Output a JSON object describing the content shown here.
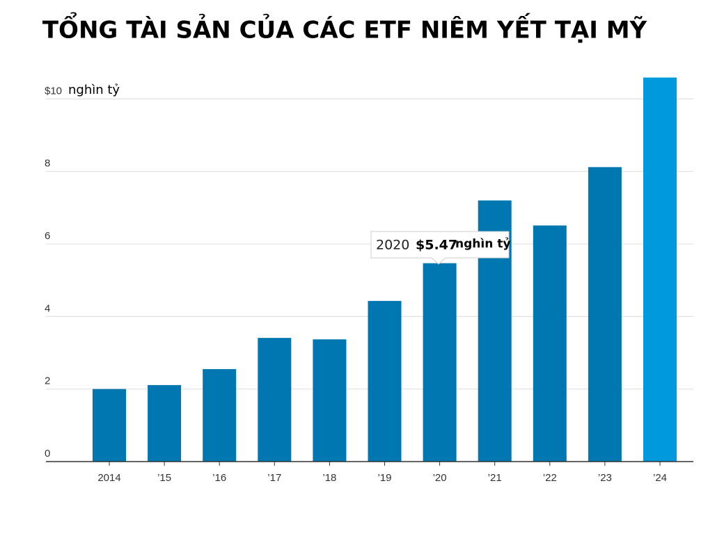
{
  "chart_data": {
    "type": "bar",
    "title": "TỔNG TÀI SẢN CỦA CÁC ETF NIÊM YẾT TẠI MỸ",
    "y_unit": "nghìn tỷ",
    "categories": [
      "2014",
      "’15",
      "’16",
      "’17",
      "’18",
      "’19",
      "’20",
      "’21",
      "’22",
      "’23",
      "’24"
    ],
    "values": [
      2.0,
      2.11,
      2.55,
      3.41,
      3.37,
      4.43,
      5.47,
      7.2,
      6.51,
      8.12,
      10.59
    ],
    "colors": [
      "#0077b0",
      "#0077b0",
      "#0077b0",
      "#0077b0",
      "#0077b0",
      "#0077b0",
      "#0077b0",
      "#0077b0",
      "#0077b0",
      "#0077b0",
      "#0099dd"
    ],
    "ylim": [
      0,
      10.6
    ],
    "yticks": [
      0,
      2,
      4,
      6,
      8,
      {
        "value": 10,
        "label": "$10"
      }
    ],
    "grid": true,
    "tooltip": {
      "year": "2020",
      "value_label": "$5.47",
      "unit": "nghìn tỷ"
    }
  }
}
